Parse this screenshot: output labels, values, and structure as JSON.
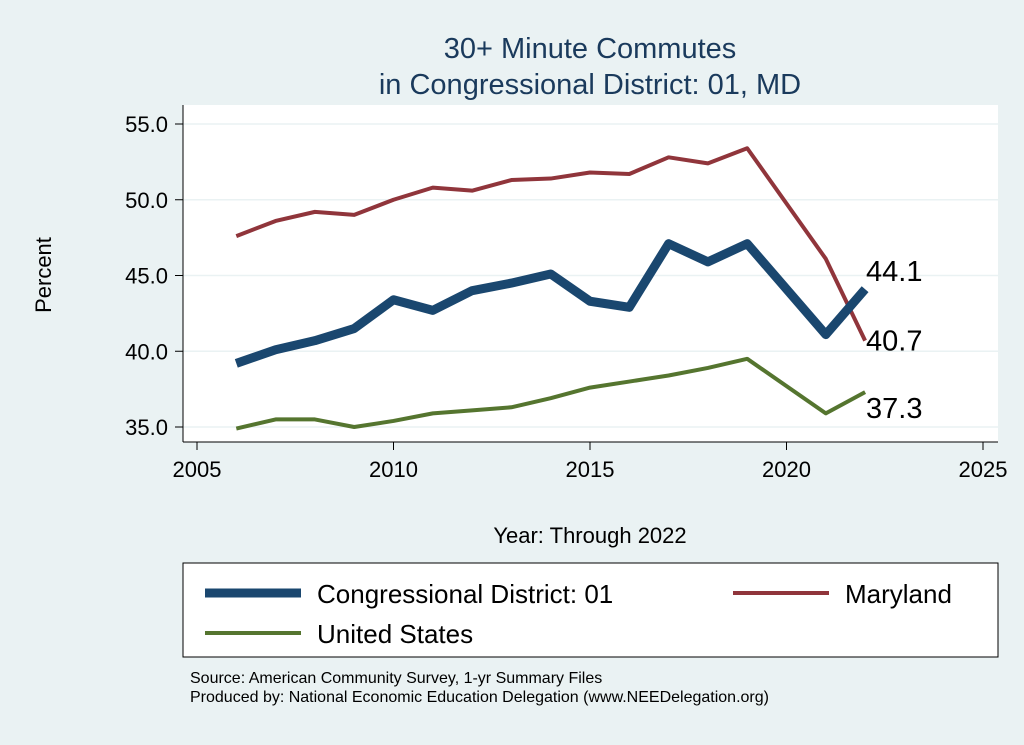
{
  "chart_data": {
    "type": "line",
    "title": [
      "30+ Minute Commutes",
      "in Congressional District:  01, MD"
    ],
    "xlabel": "Year: Through 2022",
    "ylabel": "Percent",
    "xlim": [
      2005,
      2025
    ],
    "ylim": [
      35,
      55
    ],
    "xticks": [
      2005,
      2010,
      2015,
      2020,
      2025
    ],
    "yticks": [
      "35.0",
      "40.0",
      "45.0",
      "50.0",
      "55.0"
    ],
    "grid": true,
    "legend_placement": "bottom",
    "x": [
      2006,
      2007,
      2008,
      2009,
      2010,
      2011,
      2012,
      2013,
      2014,
      2015,
      2016,
      2017,
      2018,
      2019,
      2021,
      2022
    ],
    "series": [
      {
        "name": "Congressional District:  01",
        "color": "#1a476f",
        "width": "thick",
        "end_label": "44.1",
        "values": [
          39.2,
          40.1,
          40.7,
          41.5,
          43.4,
          42.7,
          44.0,
          44.5,
          45.1,
          43.3,
          42.9,
          47.1,
          45.9,
          47.1,
          41.1,
          44.1
        ]
      },
      {
        "name": "Maryland",
        "color": "#90353b",
        "width": "medium",
        "end_label": "40.7",
        "values": [
          47.6,
          48.6,
          49.2,
          49.0,
          50.0,
          50.8,
          50.6,
          51.3,
          51.4,
          51.8,
          51.7,
          52.8,
          52.4,
          53.4,
          46.1,
          40.7
        ]
      },
      {
        "name": "United States",
        "color": "#55752f",
        "width": "medium",
        "end_label": "37.3",
        "values": [
          34.9,
          35.5,
          35.5,
          35.0,
          35.4,
          35.9,
          36.1,
          36.3,
          36.9,
          37.6,
          38.0,
          38.4,
          38.9,
          39.5,
          35.9,
          37.3
        ]
      }
    ]
  },
  "notes": [
    "Source: American Community Survey, 1-yr Summary Files",
    "Produced by: National Economic Education Delegation (www.NEEDelegation.org)"
  ]
}
